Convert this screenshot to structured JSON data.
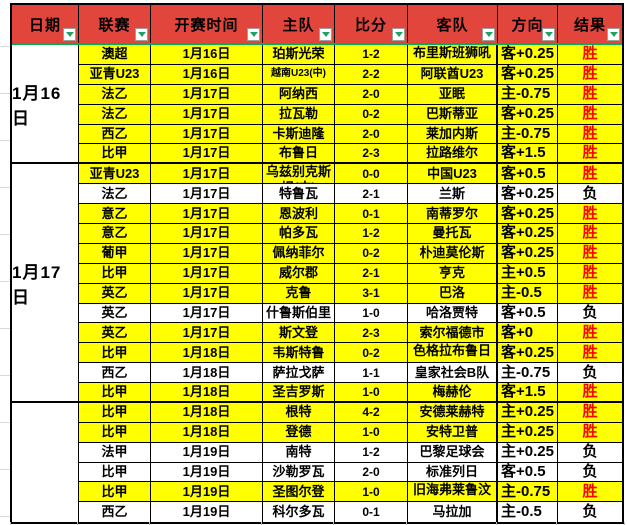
{
  "colors": {
    "header_red": "#E2453C",
    "row_win_yellow": "#FFFF00",
    "result_win_red": "#FF0000",
    "freeze_line_green": "#00B050",
    "filter_arrow_green": "#21A366"
  },
  "header": {
    "columns": [
      {
        "label": "日期"
      },
      {
        "label": "联赛"
      },
      {
        "label": "开赛时间"
      },
      {
        "label": "主队"
      },
      {
        "label": "比分"
      },
      {
        "label": "客队"
      },
      {
        "label": "方向"
      },
      {
        "label": "结果"
      }
    ],
    "filter_icon": "chevron-down-icon"
  },
  "date_groups": [
    {
      "label": "1月16日",
      "rows": 6
    },
    {
      "label": "1月17日",
      "rows": 12
    },
    {
      "label": "",
      "rows": 6
    }
  ],
  "rows": [
    {
      "league": "澳超",
      "time": "1月16日",
      "home": "珀斯光荣",
      "score": "1-2",
      "away": "布里斯班狮吼",
      "direction": "客+0.25",
      "result": "胜"
    },
    {
      "league": "亚青U23",
      "time": "1月16日",
      "home": "越南U23(中)",
      "score": "2-2",
      "away": "阿联酋U23",
      "direction": "客+0.25",
      "result": "胜"
    },
    {
      "league": "法乙",
      "time": "1月17日",
      "home": "阿纳西",
      "score": "2-0",
      "away": "亚眠",
      "direction": "主-0.75",
      "result": "胜"
    },
    {
      "league": "法乙",
      "time": "1月17日",
      "home": "拉瓦勒",
      "score": "0-2",
      "away": "巴斯蒂亚",
      "direction": "客+0.25",
      "result": "胜"
    },
    {
      "league": "西乙",
      "time": "1月17日",
      "home": "卡斯迪隆",
      "score": "2-0",
      "away": "莱加内斯",
      "direction": "主-0.75",
      "result": "胜"
    },
    {
      "league": "比甲",
      "time": "1月17日",
      "home": "布鲁日",
      "score": "2-3",
      "away": "拉路维尔",
      "direction": "客+1.5",
      "result": "胜"
    },
    {
      "league": "亚青U23",
      "time": "1月17日",
      "home": "乌兹别克斯坦(中)",
      "score": "0-0",
      "away": "中国U23",
      "direction": "客+0.5",
      "result": "胜"
    },
    {
      "league": "法乙",
      "time": "1月17日",
      "home": "特鲁瓦",
      "score": "2-1",
      "away": "兰斯",
      "direction": "客+0.25",
      "result": "负"
    },
    {
      "league": "意乙",
      "time": "1月17日",
      "home": "恩波利",
      "score": "0-1",
      "away": "南蒂罗尔",
      "direction": "客+0.25",
      "result": "胜"
    },
    {
      "league": "意乙",
      "time": "1月17日",
      "home": "帕多瓦",
      "score": "1-2",
      "away": "曼托瓦",
      "direction": "客+0.25",
      "result": "胜"
    },
    {
      "league": "葡甲",
      "time": "1月17日",
      "home": "佩纳菲尔",
      "score": "0-2",
      "away": "朴迪莫伦斯",
      "direction": "客+0.25",
      "result": "胜"
    },
    {
      "league": "比甲",
      "time": "1月17日",
      "home": "威尔郡",
      "score": "2-1",
      "away": "亨克",
      "direction": "主+0.5",
      "result": "胜"
    },
    {
      "league": "英乙",
      "time": "1月17日",
      "home": "克鲁",
      "score": "3-1",
      "away": "巴洛",
      "direction": "主-0.5",
      "result": "胜"
    },
    {
      "league": "英乙",
      "time": "1月17日",
      "home": "什鲁斯伯里",
      "score": "1-0",
      "away": "哈洛贾特",
      "direction": "客+0.5",
      "result": "负"
    },
    {
      "league": "英乙",
      "time": "1月17日",
      "home": "斯文登",
      "score": "2-3",
      "away": "索尔福德市",
      "direction": "客+0",
      "result": "胜"
    },
    {
      "league": "比甲",
      "time": "1月18日",
      "home": "韦斯特鲁",
      "score": "0-2",
      "away": "色格拉布鲁日",
      "direction": "客+0.25",
      "result": "胜"
    },
    {
      "league": "西乙",
      "time": "1月18日",
      "home": "萨拉戈萨",
      "score": "1-1",
      "away": "皇家社会B队",
      "direction": "主-0.75",
      "result": "负"
    },
    {
      "league": "比甲",
      "time": "1月18日",
      "home": "圣吉罗斯",
      "score": "1-0",
      "away": "梅赫伦",
      "direction": "客+1.5",
      "result": "胜"
    },
    {
      "league": "比甲",
      "time": "1月18日",
      "home": "根特",
      "score": "4-2",
      "away": "安德莱赫特",
      "direction": "主+0.25",
      "result": "胜"
    },
    {
      "league": "比甲",
      "time": "1月18日",
      "home": "登德",
      "score": "1-0",
      "away": "安特卫普",
      "direction": "主+0.25",
      "result": "胜"
    },
    {
      "league": "法甲",
      "time": "1月19日",
      "home": "南特",
      "score": "1-2",
      "away": "巴黎足球会",
      "direction": "主+0.25",
      "result": "负"
    },
    {
      "league": "比甲",
      "time": "1月19日",
      "home": "沙勒罗瓦",
      "score": "2-0",
      "away": "标准列日",
      "direction": "客+0.5",
      "result": "负"
    },
    {
      "league": "比甲",
      "time": "1月19日",
      "home": "圣图尔登",
      "score": "1-0",
      "away": "旧海弗莱鲁汶",
      "direction": "主-0.75",
      "result": "胜"
    },
    {
      "league": "西乙",
      "time": "1月19日",
      "home": "科尔多瓦",
      "score": "0-1",
      "away": "马拉加",
      "direction": "主-0.5",
      "result": "负"
    }
  ],
  "result_win_text": "胜",
  "result_loss_text": "负"
}
